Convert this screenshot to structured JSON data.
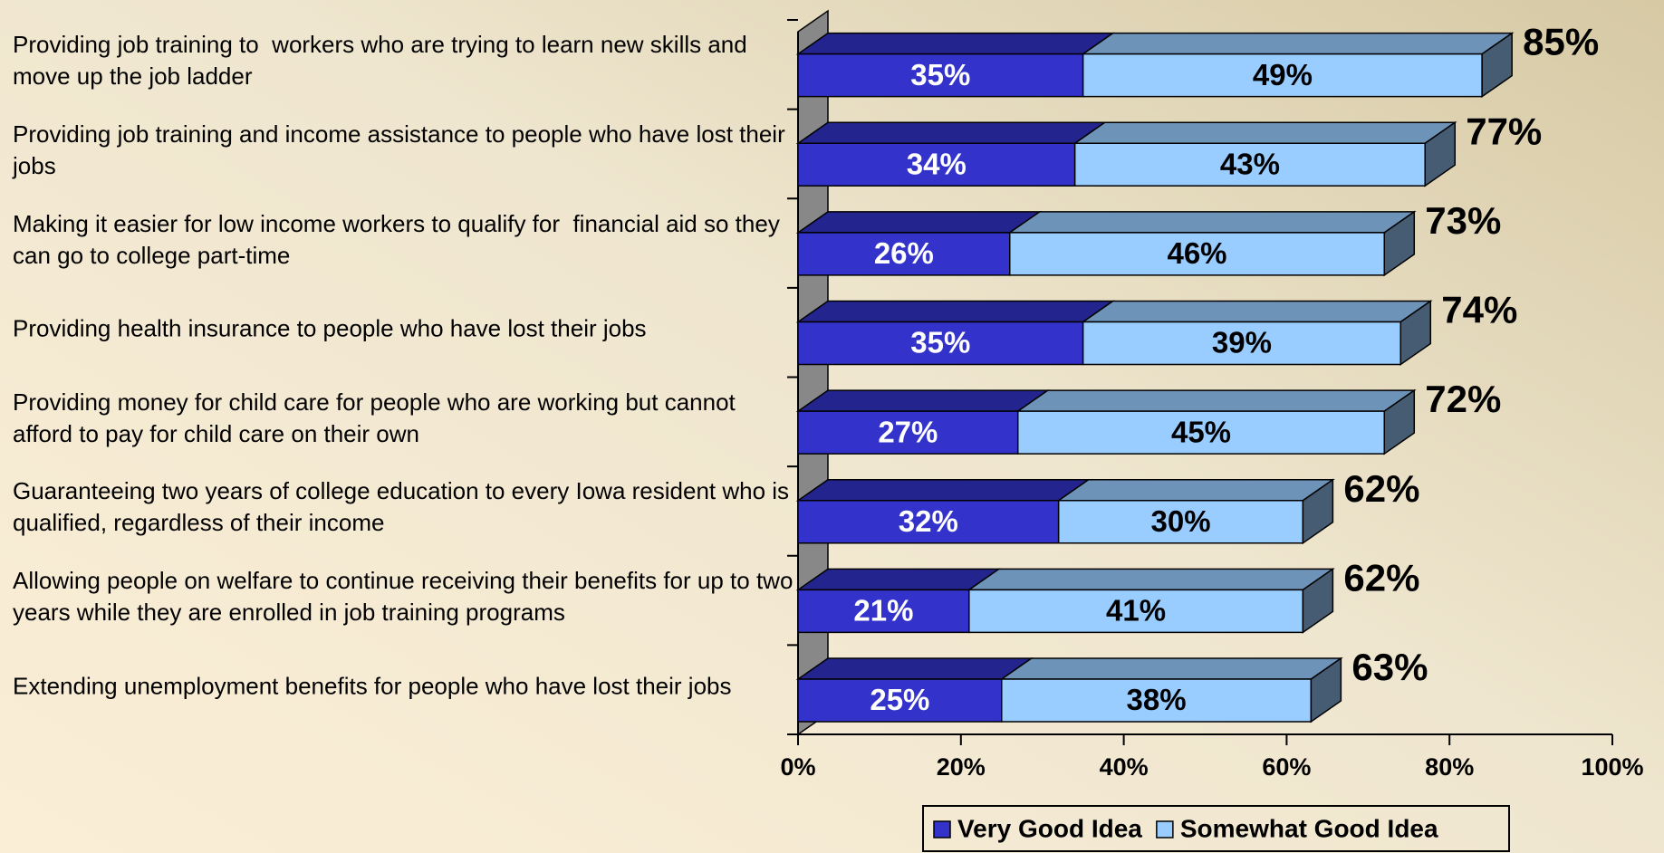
{
  "chart_data": {
    "type": "stacked-bar-3d-horizontal",
    "categories": [
      "Providing job training to  workers who are trying to learn new skills and move up the job ladder",
      "Providing job training and income assistance to people who have lost their jobs",
      "Making it easier for low income workers to qualify for  financial aid so they can go to college part-time",
      "Providing health insurance to people who have lost their jobs",
      "Providing money for child care for people who are working but cannot afford to pay for child care on their own",
      "Guaranteeing two years of college education to every Iowa resident who is qualified, regardless of their income",
      "Allowing people on welfare to continue receiving their benefits for up to two years while they are enrolled in job training programs",
      "Extending unemployment benefits for people who have lost their jobs"
    ],
    "series": [
      {
        "name": "Very Good Idea",
        "color": "#3333cc",
        "values": [
          35,
          34,
          26,
          35,
          27,
          32,
          21,
          25
        ],
        "value_labels": [
          "35%",
          "34%",
          "26%",
          "35%",
          "27%",
          "32%",
          "21%",
          "25%"
        ]
      },
      {
        "name": "Somewhat Good Idea",
        "color": "#99ccff",
        "values": [
          49,
          43,
          46,
          39,
          45,
          30,
          41,
          38
        ],
        "value_labels": [
          "49%",
          "43%",
          "46%",
          "39%",
          "45%",
          "30%",
          "41%",
          "38%"
        ]
      }
    ],
    "totals": [
      85,
      77,
      73,
      74,
      72,
      62,
      62,
      63
    ],
    "total_labels": [
      "85%",
      "77%",
      "73%",
      "74%",
      "72%",
      "62%",
      "62%",
      "63%"
    ],
    "xlim": [
      0,
      100
    ],
    "xticks": [
      {
        "value": 0,
        "label": "0%"
      },
      {
        "value": 20,
        "label": "20%"
      },
      {
        "value": 40,
        "label": "40%"
      },
      {
        "value": 60,
        "label": "60%"
      },
      {
        "value": 80,
        "label": "80%"
      },
      {
        "value": 100,
        "label": "100%"
      }
    ],
    "legend": "bottom"
  }
}
